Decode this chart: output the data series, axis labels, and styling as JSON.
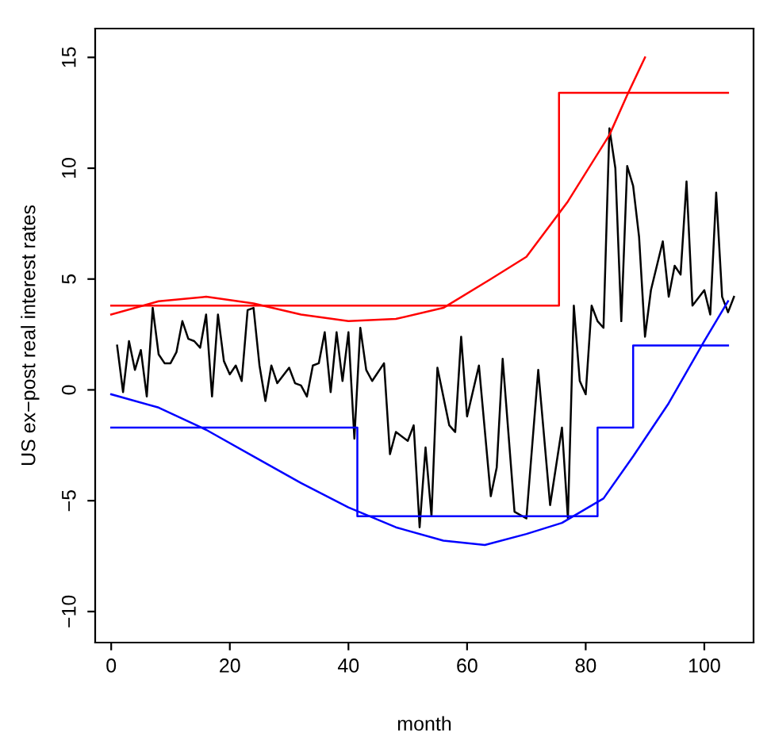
{
  "chart_data": {
    "type": "line",
    "xlabel": "month",
    "ylabel": "US ex−post real interest rates",
    "xlim": [
      -2.7,
      108.3
    ],
    "ylim": [
      -11.4,
      16.3
    ],
    "xticks": [
      0,
      20,
      40,
      60,
      80,
      100
    ],
    "yticks": [
      {
        "value": -10,
        "label": "−10"
      },
      {
        "value": -5,
        "label": "−5"
      },
      0,
      5,
      10,
      15
    ],
    "grid": false,
    "legend": false,
    "series": [
      {
        "color": "#000000",
        "x": [
          1,
          2,
          3,
          4,
          5,
          6,
          7,
          8,
          9,
          10,
          11,
          12,
          13,
          14,
          15,
          16,
          17,
          18,
          19,
          20,
          21,
          22,
          23,
          24,
          25,
          26,
          27,
          28,
          30,
          31,
          32,
          33,
          34,
          35,
          36,
          37,
          38,
          39,
          40,
          41,
          42,
          43,
          44,
          46,
          47,
          48,
          50,
          51,
          52,
          53,
          54,
          55,
          57,
          58,
          59,
          60,
          62,
          64,
          65,
          66,
          68,
          70,
          72,
          74,
          76,
          77,
          78,
          79,
          80,
          81,
          82,
          83,
          84,
          85,
          86,
          87,
          88,
          89,
          90,
          91,
          93,
          94,
          95,
          96,
          97,
          98,
          100,
          101,
          102,
          103,
          104,
          105
        ],
        "values": [
          2.0,
          -0.1,
          2.2,
          0.9,
          1.8,
          -0.3,
          3.7,
          1.6,
          1.2,
          1.2,
          1.7,
          3.1,
          2.3,
          2.2,
          1.9,
          3.4,
          -0.3,
          3.4,
          1.3,
          0.7,
          1.1,
          0.4,
          3.6,
          3.7,
          1.1,
          -0.5,
          1.1,
          0.3,
          1.0,
          0.3,
          0.2,
          -0.3,
          1.1,
          1.2,
          2.6,
          -0.1,
          2.6,
          0.4,
          2.6,
          -2.2,
          2.8,
          0.9,
          0.4,
          1.2,
          -2.9,
          -1.9,
          -2.3,
          -1.6,
          -6.2,
          -2.6,
          -5.7,
          1.0,
          -1.6,
          -1.9,
          2.4,
          -1.2,
          1.1,
          -4.8,
          -3.5,
          1.4,
          -5.5,
          -5.8,
          0.9,
          -5.2,
          -1.7,
          -5.8,
          3.8,
          0.4,
          -0.2,
          3.8,
          3.1,
          2.8,
          11.8,
          10.0,
          3.1,
          10.1,
          9.2,
          6.9,
          2.4,
          4.5,
          6.7,
          4.2,
          5.6,
          5.2,
          9.4,
          3.8,
          4.5,
          3.4,
          8.9,
          4.2,
          3.5,
          4.2
        ]
      },
      {
        "type": "step",
        "color": "#ff0000",
        "x": [
          0,
          75.5,
          104
        ],
        "values": [
          3.8,
          13.4,
          13.4
        ]
      },
      {
        "type": "step",
        "color": "#0000ff",
        "x": [
          0,
          41.5,
          82,
          88,
          104
        ],
        "values": [
          -1.7,
          -5.7,
          -1.7,
          2.0,
          2.0
        ]
      },
      {
        "type": "line",
        "color": "#ff0000",
        "x": [
          0,
          8,
          16,
          24,
          32,
          40,
          48,
          56,
          64,
          70,
          77,
          84,
          87,
          90
        ],
        "values": [
          3.4,
          4.0,
          4.2,
          3.9,
          3.4,
          3.1,
          3.2,
          3.7,
          5.0,
          6.0,
          8.5,
          11.5,
          13.3,
          15.0
        ]
      },
      {
        "type": "line",
        "color": "#0000ff",
        "x": [
          0,
          8,
          16,
          24,
          32,
          40,
          48,
          56,
          63,
          70,
          76,
          83,
          88,
          94,
          100,
          104
        ],
        "values": [
          -0.2,
          -0.8,
          -1.8,
          -3.0,
          -4.2,
          -5.3,
          -6.2,
          -6.8,
          -7.0,
          -6.5,
          -6.0,
          -4.9,
          -3.0,
          -0.6,
          2.2,
          4.0
        ]
      }
    ]
  }
}
